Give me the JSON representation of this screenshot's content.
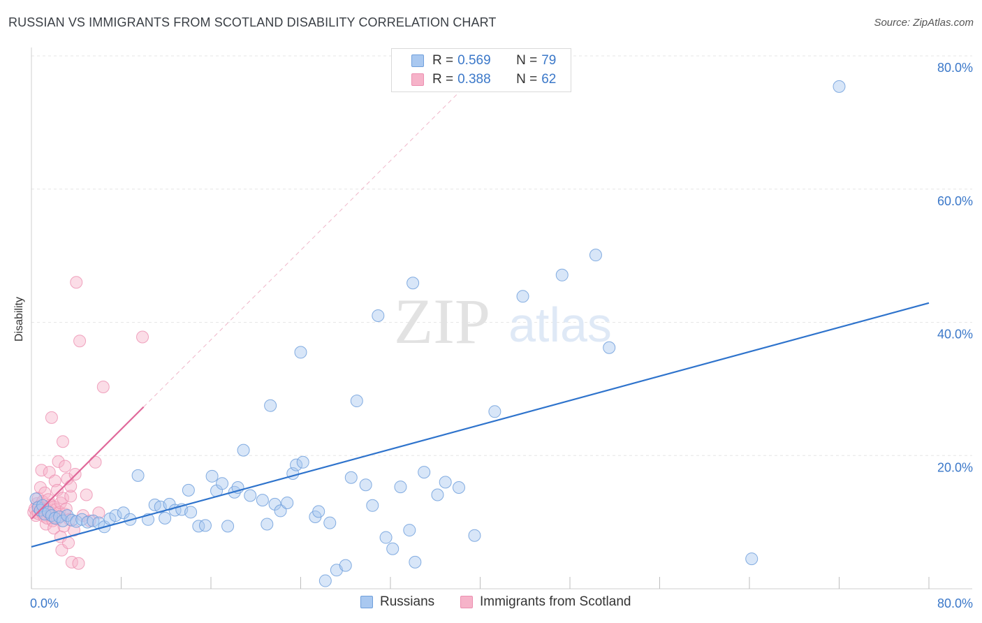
{
  "header": {
    "title": "RUSSIAN VS IMMIGRANTS FROM SCOTLAND DISABILITY CORRELATION CHART",
    "source": "Source: ZipAtlas.com"
  },
  "watermark": {
    "zip": "ZIP",
    "atlas": "atlas"
  },
  "legend": {
    "russians": {
      "r_label": "R =",
      "r_value": "0.569",
      "n_label": "N =",
      "n_value": "79"
    },
    "scotland": {
      "r_label": "R =",
      "r_value": "0.388",
      "n_label": "N =",
      "n_value": "62"
    }
  },
  "bottom_legend": {
    "russians": "Russians",
    "scotland": "Immigrants from Scotland"
  },
  "colors": {
    "russians_fill": "#a9c8f0",
    "russians_stroke": "#6f9fdc",
    "russians_line": "#2e73cc",
    "scotland_fill": "#f6b3c9",
    "scotland_stroke": "#ec8fb0",
    "scotland_line": "#e0689a",
    "tick_label": "#3b78c9",
    "grid": "#e6e6e6"
  },
  "chart_data": {
    "type": "scatter",
    "title": "RUSSIAN VS IMMIGRANTS FROM SCOTLAND DISABILITY CORRELATION CHART",
    "xlabel": "",
    "ylabel": "Disability",
    "xlim": [
      0,
      80
    ],
    "ylim": [
      0,
      80
    ],
    "x_tick_labels": [
      {
        "value": 0,
        "label": "0.0%"
      },
      {
        "value": 80,
        "label": "80.0%"
      }
    ],
    "y_tick_labels": [
      {
        "value": 20,
        "label": "20.0%"
      },
      {
        "value": 40,
        "label": "40.0%"
      },
      {
        "value": 60,
        "label": "60.0%"
      },
      {
        "value": 80,
        "label": "80.0%"
      }
    ],
    "grid": "horizontal dashed",
    "legend_position": "top-center",
    "series": [
      {
        "name": "Russians",
        "color": "#a9c8f0",
        "regression": {
          "x": [
            0,
            80
          ],
          "y": [
            6.3,
            42.9
          ]
        },
        "points": [
          [
            0.4,
            13.5
          ],
          [
            0.6,
            12.2
          ],
          [
            0.8,
            11.8
          ],
          [
            1.0,
            12.5
          ],
          [
            1.2,
            11.2
          ],
          [
            1.5,
            11.5
          ],
          [
            1.8,
            11.0
          ],
          [
            2.1,
            10.6
          ],
          [
            2.5,
            10.8
          ],
          [
            2.8,
            10.2
          ],
          [
            3.2,
            11.0
          ],
          [
            3.6,
            10.3
          ],
          [
            4.0,
            10.1
          ],
          [
            4.5,
            10.4
          ],
          [
            5.0,
            10.0
          ],
          [
            5.5,
            10.2
          ],
          [
            6.0,
            9.9
          ],
          [
            6.5,
            9.3
          ],
          [
            7.0,
            10.5
          ],
          [
            7.5,
            11.0
          ],
          [
            8.2,
            11.4
          ],
          [
            8.8,
            10.4
          ],
          [
            9.5,
            17.0
          ],
          [
            10.4,
            10.4
          ],
          [
            11.0,
            12.6
          ],
          [
            11.5,
            12.3
          ],
          [
            11.9,
            10.6
          ],
          [
            12.3,
            12.7
          ],
          [
            12.8,
            11.8
          ],
          [
            13.4,
            11.9
          ],
          [
            14.0,
            14.8
          ],
          [
            14.2,
            11.5
          ],
          [
            14.9,
            9.4
          ],
          [
            15.5,
            9.5
          ],
          [
            16.1,
            16.9
          ],
          [
            16.5,
            14.7
          ],
          [
            17.0,
            15.8
          ],
          [
            17.5,
            9.4
          ],
          [
            18.1,
            14.5
          ],
          [
            18.4,
            15.2
          ],
          [
            18.9,
            20.8
          ],
          [
            19.5,
            14.0
          ],
          [
            20.6,
            13.3
          ],
          [
            21.0,
            9.7
          ],
          [
            21.3,
            27.5
          ],
          [
            21.7,
            12.7
          ],
          [
            22.2,
            11.7
          ],
          [
            22.8,
            12.9
          ],
          [
            23.3,
            17.3
          ],
          [
            23.6,
            18.6
          ],
          [
            24.2,
            19.0
          ],
          [
            24.0,
            35.5
          ],
          [
            25.3,
            10.8
          ],
          [
            25.6,
            11.6
          ],
          [
            26.2,
            1.2
          ],
          [
            26.6,
            9.9
          ],
          [
            27.2,
            2.8
          ],
          [
            28.0,
            3.5
          ],
          [
            28.5,
            16.7
          ],
          [
            29.0,
            28.2
          ],
          [
            29.8,
            15.6
          ],
          [
            30.4,
            12.5
          ],
          [
            30.9,
            41.0
          ],
          [
            31.6,
            7.7
          ],
          [
            32.2,
            6.0
          ],
          [
            32.9,
            15.3
          ],
          [
            33.7,
            8.8
          ],
          [
            34.0,
            45.9
          ],
          [
            34.2,
            4.0
          ],
          [
            35.0,
            17.5
          ],
          [
            36.2,
            14.1
          ],
          [
            36.9,
            16.0
          ],
          [
            38.1,
            15.2
          ],
          [
            39.5,
            8.0
          ],
          [
            41.3,
            26.6
          ],
          [
            43.8,
            43.9
          ],
          [
            47.3,
            47.1
          ],
          [
            50.3,
            50.1
          ],
          [
            51.5,
            36.2
          ],
          [
            64.2,
            4.5
          ],
          [
            72.0,
            75.4
          ]
        ]
      },
      {
        "name": "Immigrants from Scotland",
        "color": "#f6b3c9",
        "regression": {
          "x": [
            0,
            10
          ],
          "y": [
            10.5,
            27.3
          ]
        },
        "points": [
          [
            0.2,
            11.5
          ],
          [
            0.3,
            12.0
          ],
          [
            0.4,
            11.0
          ],
          [
            0.5,
            12.8
          ],
          [
            0.6,
            11.3
          ],
          [
            0.6,
            13.6
          ],
          [
            0.7,
            12.4
          ],
          [
            0.8,
            11.7
          ],
          [
            0.8,
            15.2
          ],
          [
            0.9,
            17.8
          ],
          [
            1.0,
            12.0
          ],
          [
            1.0,
            13.1
          ],
          [
            1.1,
            11.2
          ],
          [
            1.1,
            10.9
          ],
          [
            1.2,
            14.4
          ],
          [
            1.2,
            12.2
          ],
          [
            1.3,
            9.7
          ],
          [
            1.3,
            11.8
          ],
          [
            1.4,
            10.6
          ],
          [
            1.5,
            13.4
          ],
          [
            1.5,
            11.6
          ],
          [
            1.6,
            17.5
          ],
          [
            1.7,
            12.6
          ],
          [
            1.7,
            11.0
          ],
          [
            1.8,
            25.7
          ],
          [
            1.8,
            11.4
          ],
          [
            1.9,
            10.2
          ],
          [
            2.0,
            12.3
          ],
          [
            2.0,
            9.1
          ],
          [
            2.1,
            16.2
          ],
          [
            2.2,
            11.9
          ],
          [
            2.3,
            10.5
          ],
          [
            2.3,
            14.8
          ],
          [
            2.4,
            19.1
          ],
          [
            2.5,
            11.5
          ],
          [
            2.6,
            7.8
          ],
          [
            2.6,
            12.9
          ],
          [
            2.7,
            5.8
          ],
          [
            2.8,
            22.1
          ],
          [
            2.8,
            13.6
          ],
          [
            2.9,
            9.4
          ],
          [
            3.0,
            18.4
          ],
          [
            3.0,
            11.2
          ],
          [
            3.1,
            12.0
          ],
          [
            3.2,
            16.5
          ],
          [
            3.3,
            6.9
          ],
          [
            3.4,
            10.4
          ],
          [
            3.5,
            13.9
          ],
          [
            3.5,
            15.4
          ],
          [
            3.6,
            4.0
          ],
          [
            3.8,
            8.8
          ],
          [
            3.9,
            17.2
          ],
          [
            4.0,
            46.0
          ],
          [
            4.2,
            3.8
          ],
          [
            4.3,
            37.2
          ],
          [
            4.6,
            11.0
          ],
          [
            4.9,
            14.1
          ],
          [
            5.2,
            10.2
          ],
          [
            5.7,
            19.0
          ],
          [
            6.0,
            11.4
          ],
          [
            6.4,
            30.3
          ],
          [
            9.9,
            37.8
          ]
        ]
      }
    ]
  }
}
